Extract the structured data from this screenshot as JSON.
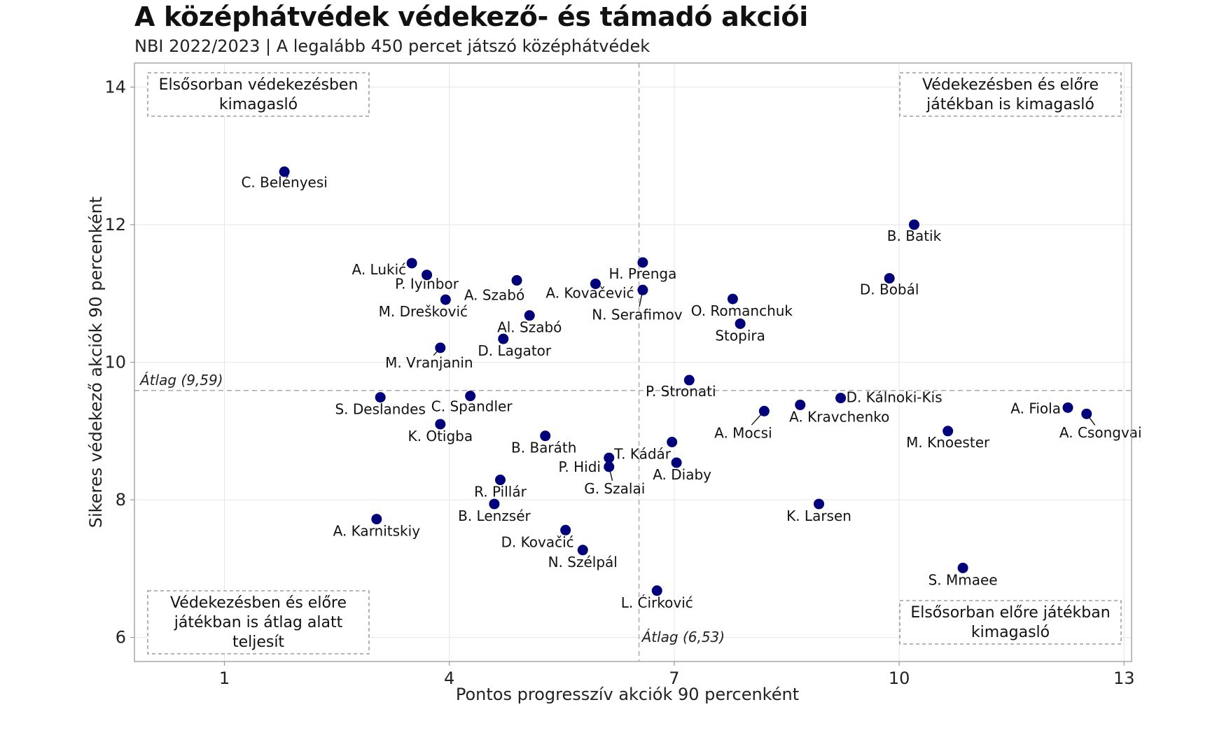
{
  "title": "A középhátvédek védekező- és támadó akciói",
  "subtitle": "NBI 2022/2023 | A legalább 450 percet játszó középhátvédek",
  "chart_data": {
    "type": "scatter",
    "xlabel": "Pontos progresszív akciók 90 percenként",
    "ylabel": "Sikeres védekező akciók 90 percenként",
    "xlim": [
      -0.2,
      13.1
    ],
    "ylim": [
      5.65,
      14.35
    ],
    "xticks": [
      1,
      4,
      7,
      10,
      13
    ],
    "yticks": [
      6,
      8,
      10,
      12,
      14
    ],
    "point_color": "#00007a",
    "average_x": {
      "value": 6.53,
      "label": "Átlag (6,53)"
    },
    "average_y": {
      "value": 9.59,
      "label": "Átlag (9,59)"
    },
    "quadrant_labels": {
      "top_left": [
        "Elsősorban védekezésben",
        "kimagasló"
      ],
      "top_right": [
        "Védekezésben és előre",
        "játékban is kimagasló"
      ],
      "bottom_left": [
        "Védekezésben és előre",
        "játékban is átlag alatt",
        "teljesít"
      ],
      "bottom_right": [
        "Elsősorban előre játékban",
        "kimagasló"
      ]
    },
    "points": [
      {
        "name": "C. Belényesi",
        "x": 1.8,
        "y": 12.77
      },
      {
        "name": "B. Batik",
        "x": 10.2,
        "y": 12.0
      },
      {
        "name": "A. Lukić",
        "x": 3.5,
        "y": 11.44
      },
      {
        "name": "P. Iyinbor",
        "x": 3.7,
        "y": 11.27
      },
      {
        "name": "A. Szabó",
        "x": 4.9,
        "y": 11.19
      },
      {
        "name": "A. Kovačević",
        "x": 5.95,
        "y": 11.14
      },
      {
        "name": "H. Prenga",
        "x": 6.58,
        "y": 11.45
      },
      {
        "name": "N. Serafimov",
        "x": 6.58,
        "y": 11.05
      },
      {
        "name": "D. Bobál",
        "x": 9.87,
        "y": 11.22
      },
      {
        "name": "M. Drešković",
        "x": 3.95,
        "y": 10.91
      },
      {
        "name": "O. Romanchuk",
        "x": 7.78,
        "y": 10.92
      },
      {
        "name": "Al. Szabó",
        "x": 5.07,
        "y": 10.68
      },
      {
        "name": "Stopira",
        "x": 7.88,
        "y": 10.56
      },
      {
        "name": "D. Lagator",
        "x": 4.72,
        "y": 10.34
      },
      {
        "name": "M. Vranjanin",
        "x": 3.88,
        "y": 10.21
      },
      {
        "name": "P. Stronati",
        "x": 7.2,
        "y": 9.74
      },
      {
        "name": "S. Deslandes",
        "x": 3.08,
        "y": 9.49
      },
      {
        "name": "C. Spandler",
        "x": 4.28,
        "y": 9.51
      },
      {
        "name": "D. Kálnoki-Kis",
        "x": 9.22,
        "y": 9.48
      },
      {
        "name": "A. Kravchenko",
        "x": 8.68,
        "y": 9.38
      },
      {
        "name": "A. Mocsi",
        "x": 8.2,
        "y": 9.29
      },
      {
        "name": "A. Fiola",
        "x": 12.25,
        "y": 9.34
      },
      {
        "name": "A. Csongvai",
        "x": 12.5,
        "y": 9.25
      },
      {
        "name": "K. Otigba",
        "x": 3.88,
        "y": 9.1
      },
      {
        "name": "M. Knoester",
        "x": 10.65,
        "y": 9.0
      },
      {
        "name": "B. Baráth",
        "x": 5.28,
        "y": 8.93
      },
      {
        "name": "A. Diaby",
        "x": 7.03,
        "y": 8.54
      },
      {
        "name": "T. Kádár",
        "x": 6.97,
        "y": 8.84
      },
      {
        "name": "P. Hidi",
        "x": 6.13,
        "y": 8.61
      },
      {
        "name": "G. Szalai",
        "x": 6.13,
        "y": 8.48
      },
      {
        "name": "R. Pillár",
        "x": 4.68,
        "y": 8.29
      },
      {
        "name": "B. Lenzsér",
        "x": 4.6,
        "y": 7.94
      },
      {
        "name": "K. Larsen",
        "x": 8.93,
        "y": 7.94
      },
      {
        "name": "A. Karnitskiy",
        "x": 3.03,
        "y": 7.72
      },
      {
        "name": "D. Kovačić",
        "x": 5.55,
        "y": 7.56
      },
      {
        "name": "N. Szélpál",
        "x": 5.78,
        "y": 7.27
      },
      {
        "name": "S. Mmaee",
        "x": 10.85,
        "y": 7.01
      },
      {
        "name": "L. Ćirković",
        "x": 6.77,
        "y": 6.68
      }
    ]
  }
}
